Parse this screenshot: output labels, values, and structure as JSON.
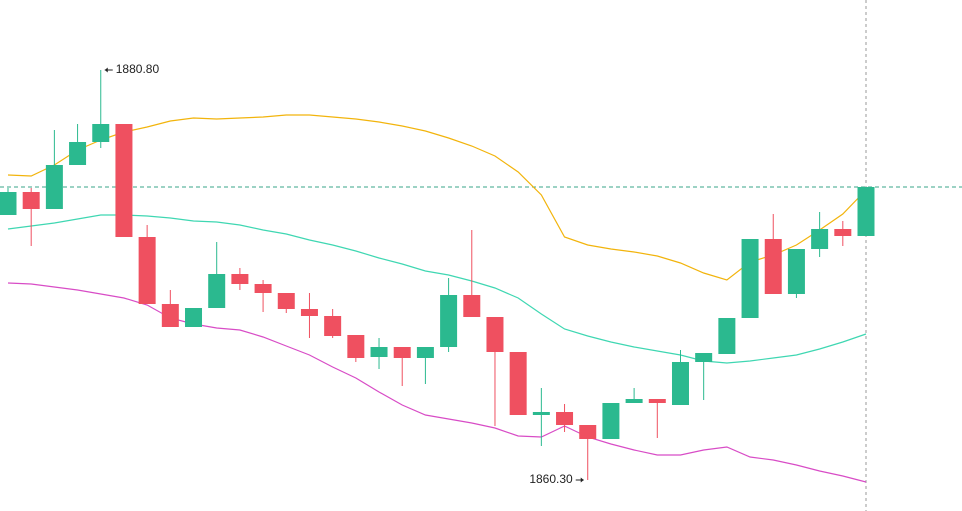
{
  "chart_data": {
    "type": "candlestick",
    "ylim": [
      1858.75,
      1884.3
    ],
    "up_color": "#2bb98f",
    "down_color": "#ef5060",
    "open": [
      1873.55,
      1874.7,
      1873.85,
      1876.05,
      1877.2,
      1878.1,
      1872.45,
      1869.1,
      1867.95,
      1868.9,
      1870.6,
      1870.1,
      1869.65,
      1868.85,
      1868.5,
      1867.55,
      1866.45,
      1866.95,
      1866.4,
      1866.95,
      1869.55,
      1868.45,
      1866.7,
      1863.55,
      1863.7,
      1863.05,
      1862.35,
      1864.15,
      1864.35,
      1864.05,
      1866.2,
      1866.6,
      1868.4,
      1872.35,
      1869.6,
      1871.85,
      1872.85,
      1872.5
    ],
    "high": [
      1874.9,
      1874.9,
      1877.8,
      1878.1,
      1880.8,
      1878.1,
      1873.05,
      1869.8,
      1868.9,
      1872.2,
      1870.9,
      1870.3,
      1869.65,
      1869.65,
      1868.85,
      1867.55,
      1867.4,
      1866.95,
      1866.95,
      1870.4,
      1872.8,
      1868.45,
      1866.7,
      1864.9,
      1864.1,
      1863.05,
      1864.15,
      1864.9,
      1864.35,
      1866.8,
      1866.65,
      1868.4,
      1872.35,
      1873.6,
      1871.85,
      1873.7,
      1873.25,
      1874.95
    ],
    "low": [
      1873.55,
      1872.0,
      1873.85,
      1876.05,
      1876.9,
      1872.45,
      1869.1,
      1867.95,
      1867.95,
      1868.9,
      1869.8,
      1868.7,
      1868.65,
      1867.4,
      1867.4,
      1866.2,
      1865.85,
      1865.0,
      1865.1,
      1866.7,
      1868.45,
      1863.0,
      1863.55,
      1862.0,
      1862.7,
      1860.3,
      1862.35,
      1864.15,
      1862.4,
      1864.05,
      1864.3,
      1866.6,
      1868.4,
      1869.6,
      1869.4,
      1871.45,
      1872.0,
      1872.5
    ],
    "close": [
      1874.7,
      1873.85,
      1876.05,
      1877.2,
      1878.1,
      1872.45,
      1869.1,
      1867.95,
      1868.9,
      1870.6,
      1870.1,
      1869.65,
      1868.85,
      1868.5,
      1867.5,
      1866.4,
      1866.95,
      1866.4,
      1866.95,
      1869.55,
      1868.45,
      1866.7,
      1863.55,
      1863.7,
      1863.05,
      1862.35,
      1864.15,
      1864.35,
      1864.15,
      1866.2,
      1866.65,
      1868.4,
      1872.35,
      1869.6,
      1871.85,
      1872.85,
      1872.5,
      1874.95
    ],
    "bands": [
      {
        "color": "#f2b40c",
        "values": [
          1875.55,
          1875.5,
          1876.05,
          1876.8,
          1877.3,
          1877.7,
          1877.95,
          1878.25,
          1878.4,
          1878.35,
          1878.4,
          1878.45,
          1878.55,
          1878.55,
          1878.45,
          1878.35,
          1878.2,
          1878.0,
          1877.75,
          1877.4,
          1877.0,
          1876.5,
          1875.7,
          1874.55,
          1872.45,
          1872.05,
          1871.85,
          1871.7,
          1871.5,
          1871.15,
          1870.65,
          1870.3,
          1871.2,
          1871.55,
          1872.05,
          1872.8,
          1873.6,
          1874.8
        ]
      },
      {
        "color": "#3fd7b2",
        "values": [
          1872.85,
          1873.0,
          1873.15,
          1873.35,
          1873.55,
          1873.55,
          1873.5,
          1873.4,
          1873.25,
          1873.2,
          1873.05,
          1872.8,
          1872.6,
          1872.3,
          1872.05,
          1871.75,
          1871.4,
          1871.1,
          1870.75,
          1870.55,
          1870.25,
          1869.9,
          1869.4,
          1868.6,
          1867.85,
          1867.5,
          1867.2,
          1866.95,
          1866.75,
          1866.55,
          1866.25,
          1866.15,
          1866.25,
          1866.4,
          1866.55,
          1866.85,
          1867.2,
          1867.6
        ]
      },
      {
        "color": "#d84cc6",
        "values": [
          1870.15,
          1870.1,
          1869.95,
          1869.8,
          1869.6,
          1869.4,
          1869.05,
          1868.4,
          1868.1,
          1867.9,
          1867.8,
          1867.45,
          1867.0,
          1866.55,
          1865.95,
          1865.4,
          1864.7,
          1864.05,
          1863.55,
          1863.35,
          1863.15,
          1862.9,
          1862.5,
          1862.45,
          1863.0,
          1862.45,
          1862.1,
          1861.8,
          1861.55,
          1861.55,
          1861.8,
          1861.95,
          1861.45,
          1861.3,
          1861.05,
          1860.75,
          1860.5,
          1860.2
        ]
      }
    ],
    "high_label": "1880.80",
    "low_label": "1860.30"
  }
}
